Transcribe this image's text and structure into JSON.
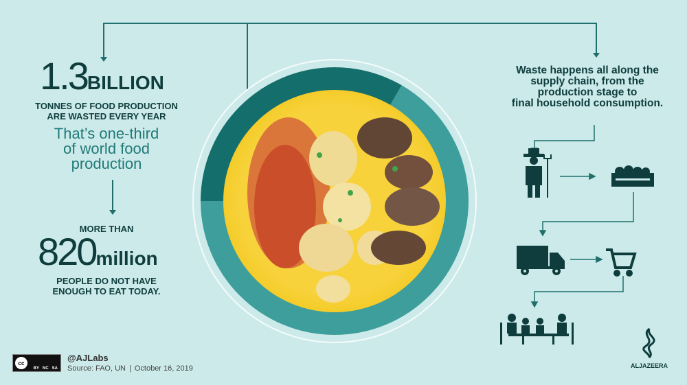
{
  "left": {
    "stat1_number": "1.3",
    "stat1_unit": "BILLION",
    "stat1_caption_line1": "TONNES OF FOOD PRODUCTION",
    "stat1_caption_line2": "ARE WASTED EVERY YEAR",
    "teal_line1": "That’s one-third",
    "teal_line2": "of world food",
    "teal_line3": "production",
    "stat2_prefix": "MORE THAN",
    "stat2_number": "820",
    "stat2_unit": "million",
    "stat2_caption_line1": "PEOPLE DO NOT HAVE",
    "stat2_caption_line2": "ENOUGH TO EAT TODAY."
  },
  "plate_chart": {
    "wasted_fraction": 0.3333,
    "colors": {
      "wasted": "#146e6b",
      "rest": "#3d9e9b"
    }
  },
  "right": {
    "waste_line1": "Waste happens all along the",
    "waste_line2": "supply chain, from the",
    "waste_line3": "production stage to",
    "waste_line4": "final household consumption.",
    "chain_icons": [
      "farmer-icon",
      "crate-icon",
      "truck-icon",
      "shopping-cart-icon",
      "family-dining-icon"
    ]
  },
  "footer": {
    "license": [
      "BY",
      "NC",
      "SA"
    ],
    "handle": "@AJLabs",
    "source": "Source: FAO, UN",
    "separator": "|",
    "date": "October 16, 2019",
    "brand": "ALJAZEERA"
  },
  "colors": {
    "background": "#cdeaea",
    "dark": "#0f3d3d",
    "teal": "#1f7a78"
  }
}
